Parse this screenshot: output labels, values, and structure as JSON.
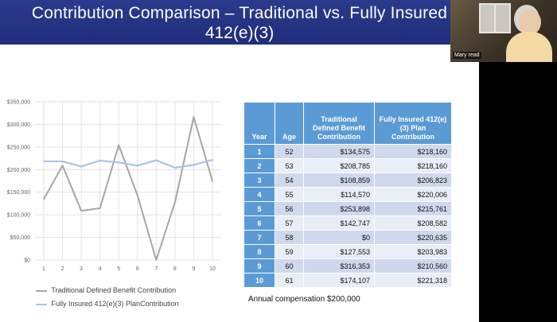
{
  "slide": {
    "title_line1": "Contribution Comparison – Traditional vs. Fully Insured",
    "title_line2": "412(e)(3)",
    "caption": "Annual compensation $200,000"
  },
  "video": {
    "participant_name": "Mary read"
  },
  "table": {
    "headers": [
      "Year",
      "Age",
      "Traditional Defined Benefit Contribution",
      "Fully Insured 412(e)(3) Plan Contribution"
    ],
    "rows": [
      {
        "year": "1",
        "age": "52",
        "traditional": "$134,575",
        "insured": "$218,160"
      },
      {
        "year": "2",
        "age": "53",
        "traditional": "$208,785",
        "insured": "$218,160"
      },
      {
        "year": "3",
        "age": "54",
        "traditional": "$108,859",
        "insured": "$206,823"
      },
      {
        "year": "4",
        "age": "55",
        "traditional": "$114,570",
        "insured": "$220,006"
      },
      {
        "year": "5",
        "age": "56",
        "traditional": "$253,898",
        "insured": "$215,761"
      },
      {
        "year": "6",
        "age": "57",
        "traditional": "$142,747",
        "insured": "$208,582"
      },
      {
        "year": "7",
        "age": "58",
        "traditional": "$0",
        "insured": "$220,635"
      },
      {
        "year": "8",
        "age": "59",
        "traditional": "$127,553",
        "insured": "$203,983"
      },
      {
        "year": "9",
        "age": "60",
        "traditional": "$316,353",
        "insured": "$210,560"
      },
      {
        "year": "10",
        "age": "61",
        "traditional": "$174,107",
        "insured": "$221,318"
      }
    ]
  },
  "chart_data": {
    "type": "line",
    "x": [
      1,
      2,
      3,
      4,
      5,
      6,
      7,
      8,
      9,
      10
    ],
    "xlabel": "",
    "ylabel": "",
    "ylim": [
      0,
      350000
    ],
    "yticks": [
      0,
      50000,
      100000,
      150000,
      200000,
      250000,
      300000,
      350000
    ],
    "ytick_labels": [
      "$0",
      "$50,000",
      "$100,000",
      "$150,000",
      "$200,000",
      "$250,000",
      "$300,000",
      "$350,000"
    ],
    "grid": true,
    "legend_position": "bottom",
    "series": [
      {
        "name": "Traditional Defined Benefit Contribution",
        "color": "#a6a6a6",
        "values": [
          134575,
          208785,
          108859,
          114570,
          253898,
          142747,
          0,
          127553,
          316353,
          174107
        ]
      },
      {
        "name": "Fully Insured 412(e)(3) PlanContribution",
        "color": "#a9c4e4",
        "values": [
          218160,
          218160,
          206823,
          220006,
          215761,
          208582,
          220635,
          203983,
          210560,
          221318
        ]
      }
    ]
  }
}
